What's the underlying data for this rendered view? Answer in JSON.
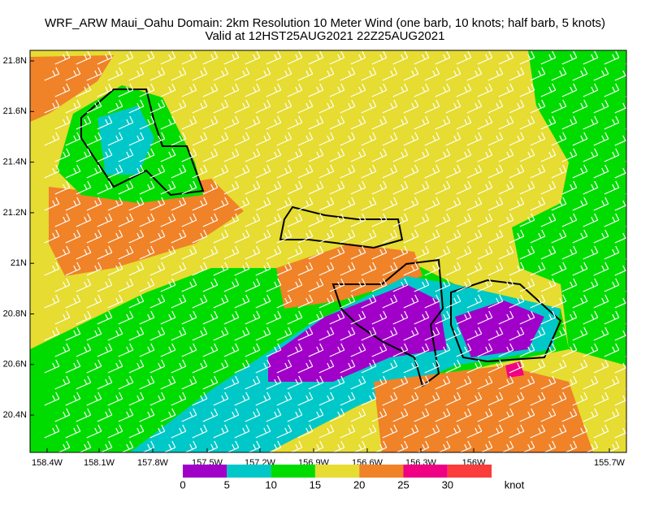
{
  "header": {
    "title": "WRF_ARW Maui_Oahu Domain: 2km Resolution  10 Meter Wind (one barb, 10 knots; half barb, 5 knots)",
    "subtitle": "Valid at 12HST25AUG2021   22Z25AUG2021"
  },
  "axes": {
    "lat": [
      "21.8N",
      "21.6N",
      "21.4N",
      "21.2N",
      "21N",
      "20.8N",
      "20.6N",
      "20.4N"
    ],
    "lon": [
      "158.4W",
      "158.1W",
      "157.8W",
      "157.5W",
      "157.2W",
      "156.9W",
      "156.6W",
      "156.3W",
      "156W",
      "155.7W"
    ]
  },
  "colorbar": {
    "labels": [
      0,
      5,
      10,
      15,
      20,
      25,
      30
    ],
    "unit": "knot",
    "colors": [
      "#a000c8",
      "#00c8c8",
      "#00dc00",
      "#e6dc32",
      "#f08228",
      "#f00082",
      "#fa3c3c"
    ]
  }
}
